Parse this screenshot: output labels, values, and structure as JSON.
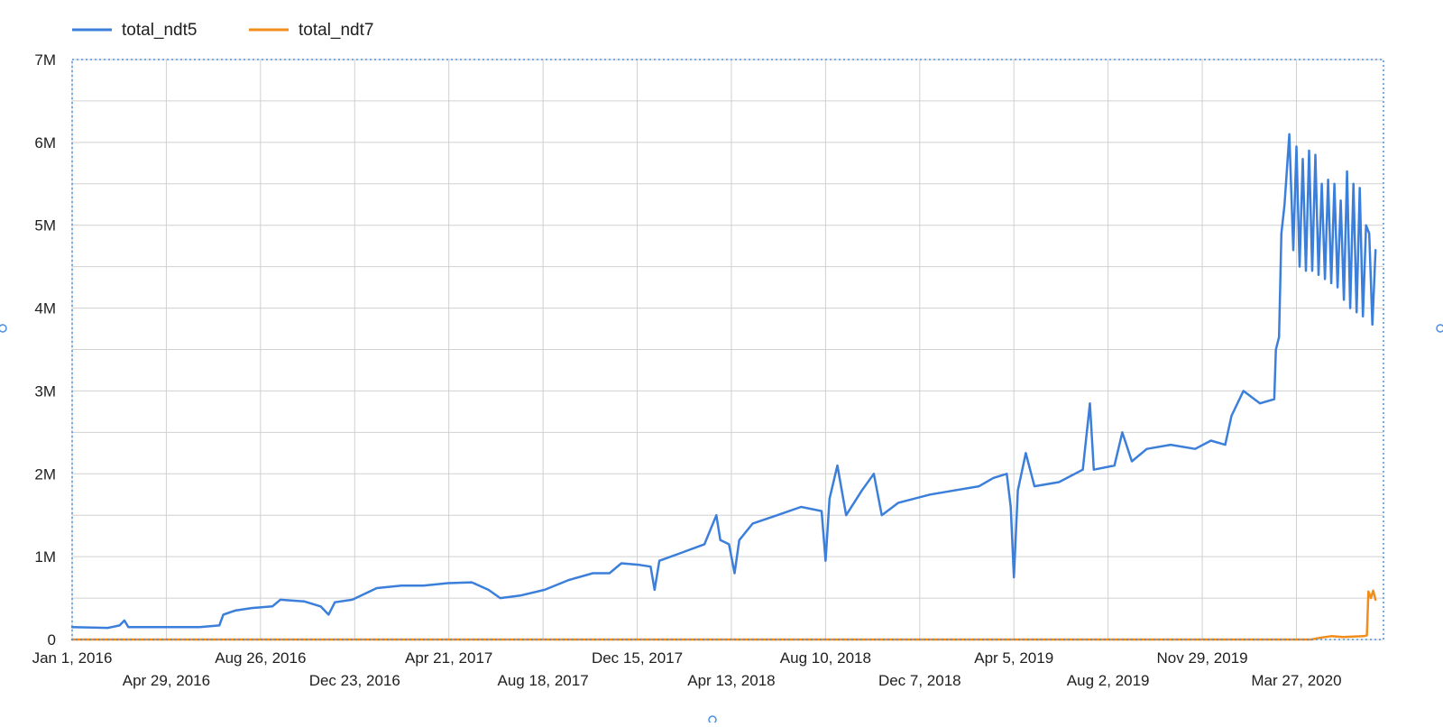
{
  "colors": {
    "ndt5": "#3b7fdb",
    "ndt7": "#f28c1a",
    "grid": "#d0d0d0",
    "axis_text": "#1f1f1f",
    "selection": "#4a90e2"
  },
  "legend": [
    {
      "label": "total_ndt5",
      "color": "#3b7fdb"
    },
    {
      "label": "total_ndt7",
      "color": "#f28c1a"
    }
  ],
  "chart_data": {
    "type": "line",
    "title": "",
    "xlabel": "",
    "ylabel": "",
    "x_domain": [
      "2016-01-01",
      "2020-07-15"
    ],
    "ylim": [
      0,
      7000000
    ],
    "grid": true,
    "legend_position": "top-left",
    "y_ticks": [
      {
        "value": 0,
        "label": "0"
      },
      {
        "value": 1000000,
        "label": "1M"
      },
      {
        "value": 2000000,
        "label": "2M"
      },
      {
        "value": 3000000,
        "label": "3M"
      },
      {
        "value": 4000000,
        "label": "4M"
      },
      {
        "value": 5000000,
        "label": "5M"
      },
      {
        "value": 6000000,
        "label": "6M"
      },
      {
        "value": 7000000,
        "label": "7M"
      }
    ],
    "x_ticks": [
      {
        "date": "2016-01-01",
        "label": "Jan 1, 2016",
        "row": 1
      },
      {
        "date": "2016-04-29",
        "label": "Apr 29, 2016",
        "row": 2
      },
      {
        "date": "2016-08-26",
        "label": "Aug 26, 2016",
        "row": 1
      },
      {
        "date": "2016-12-23",
        "label": "Dec 23, 2016",
        "row": 2
      },
      {
        "date": "2017-04-21",
        "label": "Apr 21, 2017",
        "row": 1
      },
      {
        "date": "2017-08-18",
        "label": "Aug 18, 2017",
        "row": 2
      },
      {
        "date": "2017-12-15",
        "label": "Dec 15, 2017",
        "row": 1
      },
      {
        "date": "2018-04-13",
        "label": "Apr 13, 2018",
        "row": 2
      },
      {
        "date": "2018-08-10",
        "label": "Aug 10, 2018",
        "row": 1
      },
      {
        "date": "2018-12-07",
        "label": "Dec 7, 2018",
        "row": 2
      },
      {
        "date": "2019-04-05",
        "label": "Apr 5, 2019",
        "row": 1
      },
      {
        "date": "2019-08-02",
        "label": "Aug 2, 2019",
        "row": 2
      },
      {
        "date": "2019-11-29",
        "label": "Nov 29, 2019",
        "row": 1
      },
      {
        "date": "2020-03-27",
        "label": "Mar 27, 2020",
        "row": 2
      }
    ],
    "series": [
      {
        "name": "total_ndt5",
        "color": "#3b7fdb",
        "points": [
          [
            "2016-01-01",
            150000
          ],
          [
            "2016-02-15",
            140000
          ],
          [
            "2016-03-01",
            170000
          ],
          [
            "2016-03-07",
            230000
          ],
          [
            "2016-03-12",
            150000
          ],
          [
            "2016-04-15",
            150000
          ],
          [
            "2016-05-15",
            150000
          ],
          [
            "2016-06-10",
            150000
          ],
          [
            "2016-07-05",
            170000
          ],
          [
            "2016-07-10",
            300000
          ],
          [
            "2016-07-25",
            350000
          ],
          [
            "2016-08-15",
            380000
          ],
          [
            "2016-09-10",
            400000
          ],
          [
            "2016-09-20",
            480000
          ],
          [
            "2016-10-20",
            460000
          ],
          [
            "2016-11-10",
            400000
          ],
          [
            "2016-11-20",
            300000
          ],
          [
            "2016-11-28",
            450000
          ],
          [
            "2016-12-20",
            480000
          ],
          [
            "2017-01-20",
            620000
          ],
          [
            "2017-02-20",
            650000
          ],
          [
            "2017-03-20",
            650000
          ],
          [
            "2017-04-20",
            680000
          ],
          [
            "2017-05-20",
            690000
          ],
          [
            "2017-06-10",
            600000
          ],
          [
            "2017-06-25",
            500000
          ],
          [
            "2017-07-20",
            530000
          ],
          [
            "2017-08-20",
            600000
          ],
          [
            "2017-09-20",
            720000
          ],
          [
            "2017-10-20",
            800000
          ],
          [
            "2017-11-10",
            800000
          ],
          [
            "2017-11-25",
            920000
          ],
          [
            "2017-12-18",
            900000
          ],
          [
            "2018-01-01",
            880000
          ],
          [
            "2018-01-06",
            600000
          ],
          [
            "2018-01-12",
            950000
          ],
          [
            "2018-02-10",
            1050000
          ],
          [
            "2018-03-10",
            1150000
          ],
          [
            "2018-03-25",
            1500000
          ],
          [
            "2018-03-30",
            1200000
          ],
          [
            "2018-04-10",
            1150000
          ],
          [
            "2018-04-17",
            800000
          ],
          [
            "2018-04-23",
            1200000
          ],
          [
            "2018-05-10",
            1400000
          ],
          [
            "2018-06-10",
            1500000
          ],
          [
            "2018-07-10",
            1600000
          ],
          [
            "2018-08-05",
            1550000
          ],
          [
            "2018-08-10",
            950000
          ],
          [
            "2018-08-15",
            1700000
          ],
          [
            "2018-08-25",
            2100000
          ],
          [
            "2018-09-05",
            1500000
          ],
          [
            "2018-09-25",
            1800000
          ],
          [
            "2018-10-10",
            2000000
          ],
          [
            "2018-10-20",
            1500000
          ],
          [
            "2018-11-10",
            1650000
          ],
          [
            "2018-12-20",
            1750000
          ],
          [
            "2019-01-20",
            1800000
          ],
          [
            "2019-02-20",
            1850000
          ],
          [
            "2019-03-10",
            1950000
          ],
          [
            "2019-03-27",
            2000000
          ],
          [
            "2019-04-01",
            1600000
          ],
          [
            "2019-04-05",
            750000
          ],
          [
            "2019-04-10",
            1800000
          ],
          [
            "2019-04-20",
            2250000
          ],
          [
            "2019-05-01",
            1850000
          ],
          [
            "2019-06-01",
            1900000
          ],
          [
            "2019-07-01",
            2050000
          ],
          [
            "2019-07-10",
            2850000
          ],
          [
            "2019-07-15",
            2050000
          ],
          [
            "2019-08-10",
            2100000
          ],
          [
            "2019-08-20",
            2500000
          ],
          [
            "2019-09-01",
            2150000
          ],
          [
            "2019-09-20",
            2300000
          ],
          [
            "2019-10-20",
            2350000
          ],
          [
            "2019-11-20",
            2300000
          ],
          [
            "2019-12-10",
            2400000
          ],
          [
            "2019-12-28",
            2350000
          ],
          [
            "2020-01-05",
            2700000
          ],
          [
            "2020-01-20",
            3000000
          ],
          [
            "2020-02-10",
            2850000
          ],
          [
            "2020-02-28",
            2900000
          ],
          [
            "2020-03-01",
            3500000
          ],
          [
            "2020-03-05",
            3650000
          ],
          [
            "2020-03-08",
            4900000
          ],
          [
            "2020-03-12",
            5250000
          ],
          [
            "2020-03-18",
            6100000
          ],
          [
            "2020-03-23",
            4700000
          ],
          [
            "2020-03-27",
            5950000
          ],
          [
            "2020-03-31",
            4500000
          ],
          [
            "2020-04-04",
            5800000
          ],
          [
            "2020-04-08",
            4450000
          ],
          [
            "2020-04-12",
            5900000
          ],
          [
            "2020-04-16",
            4450000
          ],
          [
            "2020-04-20",
            5850000
          ],
          [
            "2020-04-24",
            4400000
          ],
          [
            "2020-04-28",
            5500000
          ],
          [
            "2020-05-02",
            4350000
          ],
          [
            "2020-05-06",
            5550000
          ],
          [
            "2020-05-10",
            4300000
          ],
          [
            "2020-05-14",
            5500000
          ],
          [
            "2020-05-18",
            4250000
          ],
          [
            "2020-05-22",
            5300000
          ],
          [
            "2020-05-26",
            4100000
          ],
          [
            "2020-05-30",
            5650000
          ],
          [
            "2020-06-03",
            4000000
          ],
          [
            "2020-06-07",
            5500000
          ],
          [
            "2020-06-11",
            3950000
          ],
          [
            "2020-06-15",
            5450000
          ],
          [
            "2020-06-19",
            3900000
          ],
          [
            "2020-06-23",
            5000000
          ],
          [
            "2020-06-27",
            4900000
          ],
          [
            "2020-07-01",
            3800000
          ],
          [
            "2020-07-05",
            4700000
          ]
        ]
      },
      {
        "name": "total_ndt7",
        "color": "#f28c1a",
        "points": [
          [
            "2016-01-01",
            0
          ],
          [
            "2020-04-15",
            0
          ],
          [
            "2020-04-25",
            20000
          ],
          [
            "2020-05-10",
            40000
          ],
          [
            "2020-05-25",
            30000
          ],
          [
            "2020-06-20",
            40000
          ],
          [
            "2020-06-24",
            50000
          ],
          [
            "2020-06-26",
            580000
          ],
          [
            "2020-06-29",
            500000
          ],
          [
            "2020-07-02",
            590000
          ],
          [
            "2020-07-05",
            480000
          ]
        ]
      }
    ]
  }
}
